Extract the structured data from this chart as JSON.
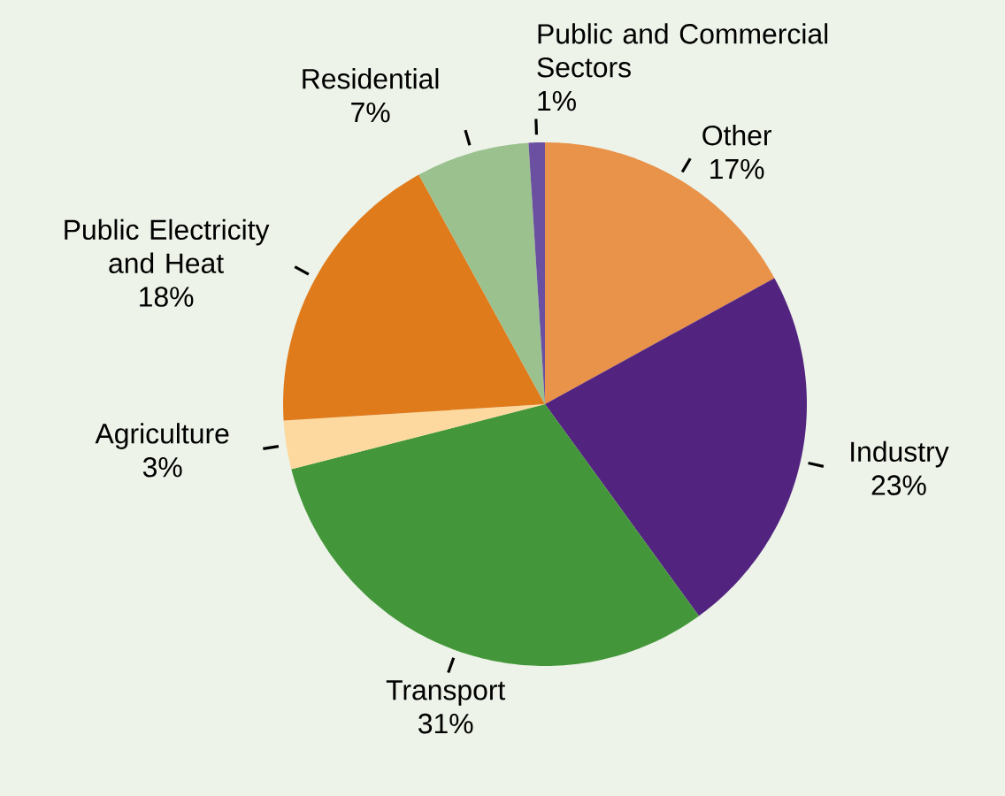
{
  "chart_data": {
    "type": "pie",
    "categories": [
      "Other",
      "Industry",
      "Transport",
      "Agriculture",
      "Public Electricity and Heat",
      "Residential",
      "Public and Commercial Sectors"
    ],
    "values": [
      17,
      23,
      31,
      3,
      18,
      7,
      1
    ],
    "colors": [
      "#e8924a",
      "#52247f",
      "#43973a",
      "#fdd9a0",
      "#e07b1c",
      "#9bc18f",
      "#6b4fa0"
    ],
    "value_labels": [
      "17%",
      "23%",
      "31%",
      "3%",
      "18%",
      "7%",
      "1%"
    ]
  }
}
